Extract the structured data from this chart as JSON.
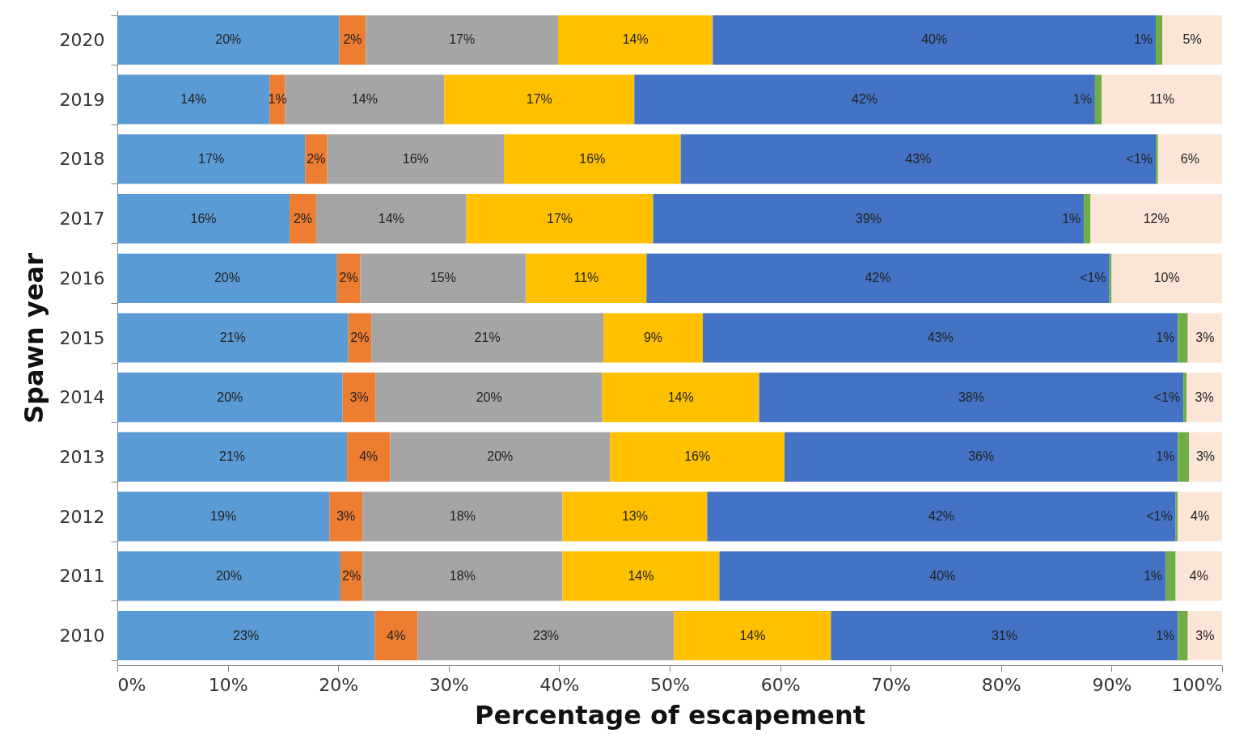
{
  "chart_data": {
    "type": "bar",
    "orientation": "horizontal",
    "stacked": true,
    "xlabel": "Percentage of escapement",
    "ylabel": "Spawn year",
    "categories": [
      "2020",
      "2019",
      "2018",
      "2017",
      "2016",
      "2015",
      "2014",
      "2013",
      "2012",
      "2011",
      "2010"
    ],
    "xlim": [
      0,
      100
    ],
    "xticks": [
      {
        "value": 0,
        "label": "0%"
      },
      {
        "value": 10,
        "label": "10%"
      },
      {
        "value": 20,
        "label": "20%"
      },
      {
        "value": 30,
        "label": "30%"
      },
      {
        "value": 40,
        "label": "40%"
      },
      {
        "value": 50,
        "label": "50%"
      },
      {
        "value": 60,
        "label": "60%"
      },
      {
        "value": 70,
        "label": "70%"
      },
      {
        "value": 80,
        "label": "80%"
      },
      {
        "value": 90,
        "label": "90%"
      },
      {
        "value": 100,
        "label": "100%"
      }
    ],
    "grid": false,
    "legend": false,
    "series": [
      {
        "color": "#5b9bd5",
        "values": [
          20.1,
          13.8,
          17,
          15.6,
          19.9,
          20.9,
          20.4,
          20.8,
          19.2,
          20.2,
          23.3
        ],
        "value_labels": [
          "20%",
          "14%",
          "17%",
          "16%",
          "20%",
          "21%",
          "20%",
          "21%",
          "19%",
          "20%",
          "23%"
        ]
      },
      {
        "color": "#ed7d31",
        "values": [
          2.4,
          1.4,
          2,
          2.4,
          2.1,
          2.1,
          3.0,
          3.9,
          3.0,
          2.0,
          3.9
        ],
        "value_labels": [
          "2%",
          "1%",
          "2%",
          "2%",
          "2%",
          "2%",
          "3%",
          "4%",
          "3%",
          "2%",
          "4%"
        ]
      },
      {
        "color": "#a5a5a5",
        "values": [
          17.4,
          14.4,
          16,
          13.6,
          15,
          21,
          20.5,
          19.9,
          18.1,
          18.1,
          23.2
        ],
        "value_labels": [
          "17%",
          "14%",
          "16%",
          "14%",
          "15%",
          "21%",
          "20%",
          "20%",
          "18%",
          "18%",
          "23%"
        ]
      },
      {
        "color": "#ffc000",
        "values": [
          14.0,
          17.2,
          16,
          16.9,
          10.9,
          9,
          14.2,
          15.8,
          13.1,
          14.2,
          14.2
        ],
        "value_labels": [
          "14%",
          "17%",
          "16%",
          "17%",
          "11%",
          "9%",
          "14%",
          "16%",
          "13%",
          "14%",
          "14%"
        ]
      },
      {
        "color": "#4472c4",
        "values": [
          40.1,
          41.7,
          43,
          39.0,
          41.9,
          43,
          38.4,
          35.6,
          42.4,
          40.4,
          31.4
        ],
        "value_labels": [
          "40%",
          "42%",
          "43%",
          "39%",
          "42%",
          "43%",
          "38%",
          "36%",
          "42%",
          "40%",
          "31%"
        ]
      },
      {
        "color": "#70ad47",
        "values": [
          0.6,
          0.6,
          0.2,
          0.6,
          0.2,
          0.9,
          0.3,
          1.0,
          0.2,
          0.9,
          0.9
        ],
        "value_labels": [
          "1%",
          "1%",
          "<1%",
          "1%",
          "<1%",
          "1%",
          "<1%",
          "1%",
          "<1%",
          "1%",
          "1%"
        ]
      },
      {
        "color": "#fbe5d6",
        "values": [
          5.4,
          10.9,
          5.8,
          11.9,
          10,
          3.1,
          3.2,
          3.0,
          4.0,
          4.2,
          3.1
        ],
        "value_labels": [
          "5%",
          "11%",
          "6%",
          "12%",
          "10%",
          "3%",
          "3%",
          "3%",
          "4%",
          "4%",
          "3%"
        ]
      }
    ]
  }
}
